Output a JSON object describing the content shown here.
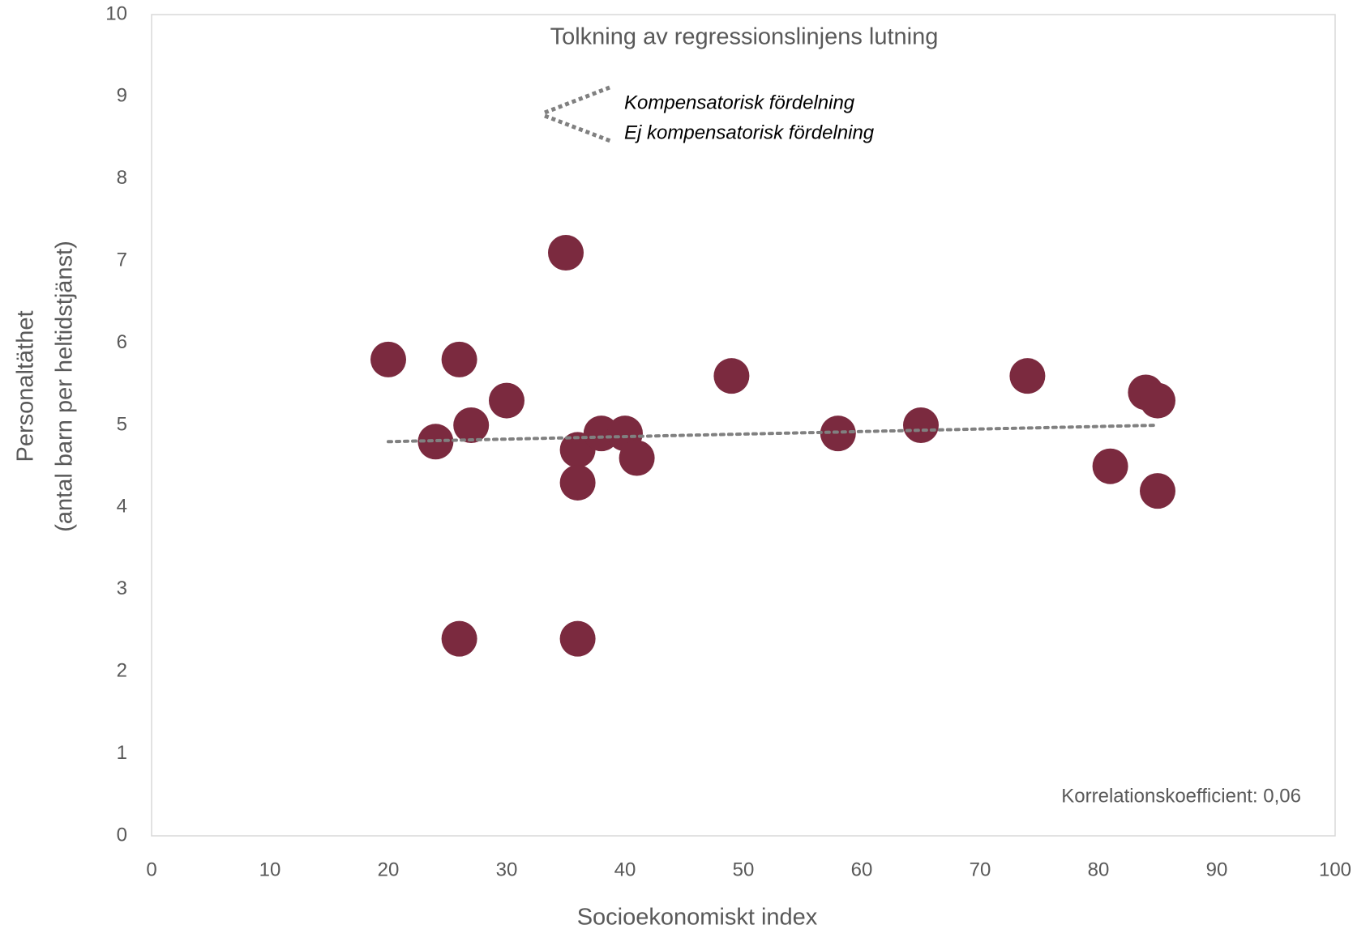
{
  "chart_data": {
    "type": "scatter",
    "title": "Tolkning av regressionslinjens lutning",
    "x_label": "Socioekonomiskt index",
    "y_label": [
      "Personaltäthet",
      "(antal barn per heltidstjänst)"
    ],
    "annotations": {
      "up": "Kompensatorisk fördelning",
      "down": "Ej kompensatorisk fördelning",
      "correlation": "Korrelationskoefficient: 0,06"
    },
    "color": "#7b2a3f",
    "x": [
      20,
      24,
      26,
      26,
      27,
      30,
      35,
      36,
      36,
      36,
      38,
      40,
      41,
      49,
      58,
      65,
      74,
      81,
      84,
      85,
      85
    ],
    "values": [
      5.8,
      4.8,
      5.8,
      2.4,
      5.0,
      5.3,
      7.1,
      4.7,
      4.3,
      2.4,
      4.9,
      4.9,
      4.6,
      5.6,
      4.9,
      5.0,
      5.6,
      4.5,
      5.4,
      5.3,
      4.2
    ],
    "trendline": {
      "x": [
        20,
        85
      ],
      "values": [
        4.8,
        5.0
      ],
      "color": "#808080"
    },
    "xlim": [
      0,
      100
    ],
    "xticks": [
      0,
      10,
      20,
      30,
      40,
      50,
      60,
      70,
      80,
      90,
      100
    ],
    "ylim": [
      0,
      10
    ],
    "yticks": [
      0,
      1,
      2,
      3,
      4,
      5,
      6,
      7,
      8,
      9,
      10
    ],
    "grid": false
  }
}
